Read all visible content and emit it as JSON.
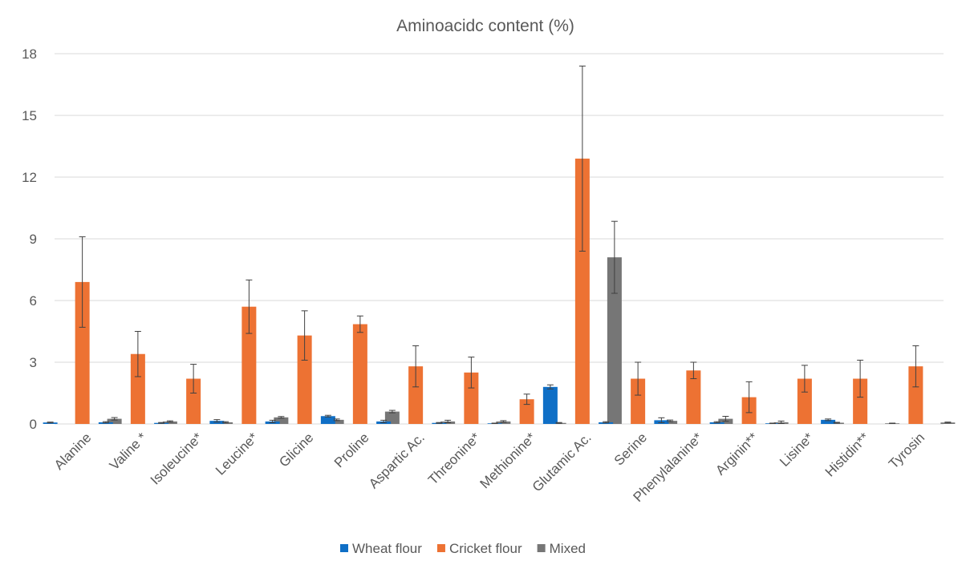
{
  "chart_data": {
    "type": "bar",
    "title": "Aminoacidc content (%)",
    "xlabel": "",
    "ylabel": "",
    "ylim": [
      0,
      18
    ],
    "yticks": [
      0,
      3,
      6,
      9,
      12,
      15,
      18
    ],
    "grid": true,
    "legend": "bottom",
    "categories": [
      "Alanine",
      "Valine *",
      "Isoleucine*",
      "Leucine*",
      "Glicine",
      "Proline",
      "Aspartic Ac.",
      "Threonine*",
      "Methionine*",
      "Glutamic Ac.",
      "Serine",
      "Phenylalanine*",
      "Arginin**",
      "Lisine*",
      "Histidin**",
      "Tyrosin"
    ],
    "series": [
      {
        "name": "Wheat flour",
        "color": "#0f6fc6",
        "values": [
          0.07,
          0.08,
          0.05,
          0.15,
          0.12,
          0.38,
          0.12,
          0.05,
          0.03,
          1.8,
          0.08,
          0.18,
          0.08,
          0.03,
          0.2,
          0.0
        ],
        "errors": [
          0.02,
          0.03,
          0.02,
          0.06,
          0.06,
          0.04,
          0.06,
          0.02,
          0.01,
          0.1,
          0.03,
          0.12,
          0.03,
          0.01,
          0.04,
          0.0
        ]
      },
      {
        "name": "Cricket flour",
        "color": "#ed7233",
        "values": [
          6.9,
          3.4,
          2.2,
          5.7,
          4.3,
          4.85,
          2.8,
          2.5,
          1.2,
          12.9,
          2.2,
          2.6,
          1.3,
          2.2,
          2.2,
          2.8
        ],
        "errors": [
          2.2,
          1.1,
          0.7,
          1.3,
          1.2,
          0.4,
          1.0,
          0.75,
          0.25,
          4.5,
          0.8,
          0.4,
          0.75,
          0.65,
          0.9,
          1.0
        ]
      },
      {
        "name": "Mixed",
        "color": "#767676",
        "values": [
          0.25,
          0.12,
          0.08,
          0.32,
          0.2,
          0.6,
          0.12,
          0.12,
          0.05,
          8.1,
          0.15,
          0.25,
          0.08,
          0.06,
          0.03,
          0.07
        ],
        "errors": [
          0.06,
          0.03,
          0.03,
          0.04,
          0.04,
          0.06,
          0.06,
          0.04,
          0.02,
          1.75,
          0.04,
          0.12,
          0.06,
          0.02,
          0.01,
          0.02
        ]
      }
    ]
  }
}
